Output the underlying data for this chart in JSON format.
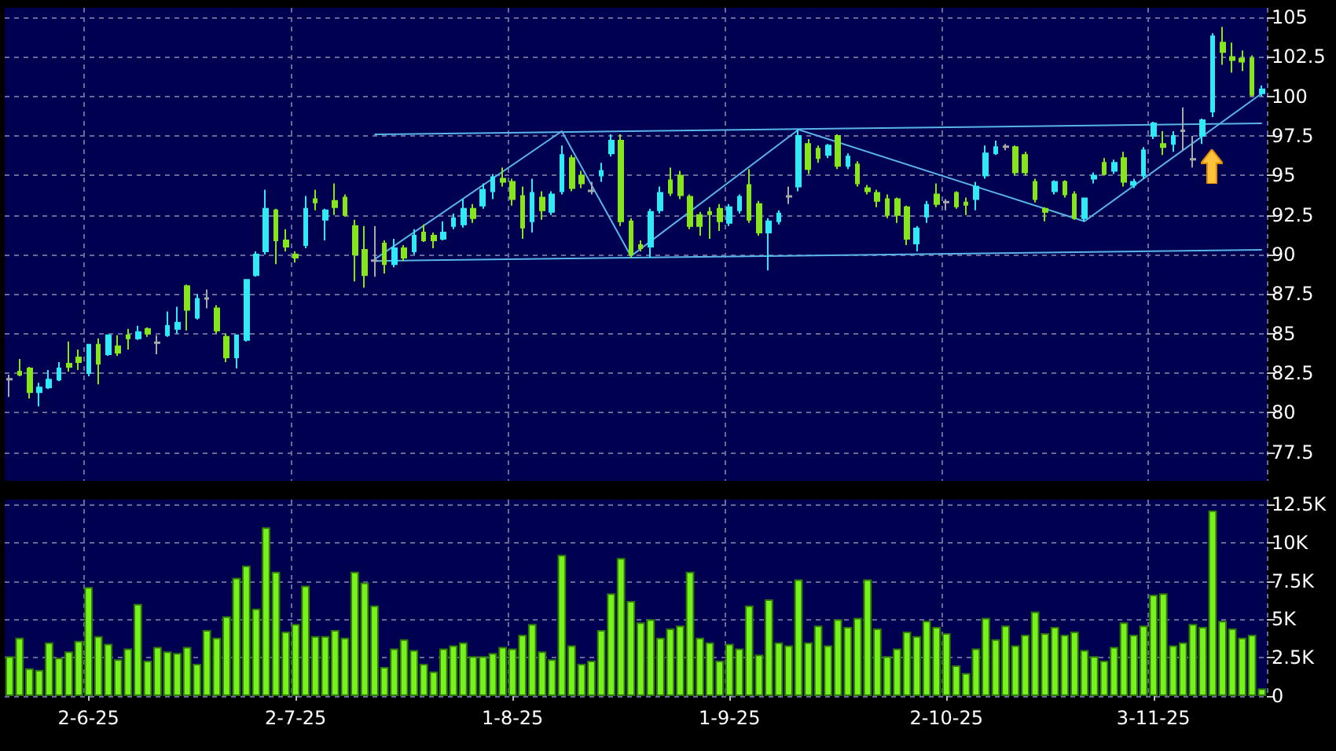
{
  "chart_data": [
    {
      "type": "candlestick",
      "categories": [
        null,
        null,
        null,
        null,
        null,
        null,
        null,
        null,
        null,
        null,
        null,
        null,
        null,
        null,
        null,
        null,
        null,
        null,
        null,
        null,
        null,
        null,
        null,
        null,
        null,
        null,
        null,
        null,
        null,
        null,
        null,
        null,
        null,
        null,
        null,
        null,
        null,
        null,
        null,
        null,
        null,
        null,
        null,
        null,
        null,
        null,
        null,
        null,
        null,
        null,
        null,
        null,
        null,
        null,
        null,
        null,
        null,
        null,
        null,
        null,
        null,
        null,
        null,
        null,
        null,
        null,
        null,
        null,
        null,
        null,
        null,
        null,
        null,
        null,
        null,
        null,
        null,
        null,
        null,
        null,
        null,
        null,
        null,
        null,
        null,
        null,
        null,
        null,
        null,
        null,
        null,
        null,
        null,
        null,
        null,
        null,
        null,
        null,
        null,
        null,
        null,
        null,
        null,
        null,
        null,
        null,
        null,
        null,
        null,
        null,
        null,
        null,
        null,
        null,
        null,
        null,
        null,
        null,
        null,
        null,
        null,
        null,
        null,
        null,
        null,
        null,
        null,
        null
      ],
      "ylim": [
        75.7,
        105.6
      ],
      "yticks": [
        77.5,
        80,
        82.5,
        85,
        87.5,
        90,
        92.5,
        95,
        97.5,
        100,
        102.5,
        105
      ],
      "grid": true,
      "tick_labels": "y",
      "series": [
        {
          "type": "candlestick",
          "ohlc": [
            [
              82.1,
              82.4,
              81.0,
              82.15
            ],
            [
              82.6,
              83.4,
              82.3,
              82.4
            ],
            [
              82.8,
              82.9,
              80.9,
              81.3
            ],
            [
              81.3,
              81.9,
              80.4,
              81.6
            ],
            [
              81.6,
              82.7,
              81.5,
              82.1
            ],
            [
              82.1,
              83.2,
              82.0,
              82.8
            ],
            [
              83.1,
              84.5,
              82.6,
              82.9
            ],
            [
              83.5,
              84.0,
              82.7,
              83.2
            ],
            [
              82.5,
              84.3,
              82.3,
              84.3
            ],
            [
              84.3,
              84.7,
              81.8,
              83.1
            ],
            [
              83.7,
              84.9,
              83.6,
              84.9
            ],
            [
              84.2,
              84.9,
              83.6,
              83.8
            ],
            [
              84.9,
              85.3,
              84.0,
              84.7
            ],
            [
              84.7,
              85.5,
              84.6,
              85.1
            ],
            [
              85.3,
              85.4,
              84.8,
              85.0
            ],
            [
              84.4,
              84.9,
              83.7,
              84.45
            ],
            [
              84.9,
              86.4,
              84.8,
              85.5
            ],
            [
              85.3,
              86.7,
              85.0,
              85.7
            ],
            [
              88.0,
              88.1,
              85.2,
              86.5
            ],
            [
              86.0,
              87.5,
              85.9,
              87.2
            ],
            [
              87.2,
              87.8,
              86.6,
              87.25
            ],
            [
              86.6,
              86.8,
              85.0,
              85.2
            ],
            [
              84.8,
              85.0,
              83.2,
              83.5
            ],
            [
              83.5,
              84.9,
              82.8,
              84.9
            ],
            [
              84.6,
              88.4,
              84.5,
              88.4
            ],
            [
              88.7,
              90.2,
              88.6,
              90.0
            ],
            [
              90.2,
              94.1,
              90.0,
              92.9
            ],
            [
              92.8,
              92.9,
              89.4,
              90.9
            ],
            [
              90.9,
              91.6,
              90.2,
              90.5
            ],
            [
              90.0,
              90.2,
              89.5,
              89.8
            ],
            [
              90.6,
              93.7,
              90.4,
              92.9
            ],
            [
              93.5,
              94.1,
              92.8,
              93.3
            ],
            [
              92.2,
              92.9,
              90.9,
              92.8
            ],
            [
              93.4,
              94.5,
              92.5,
              93.0
            ],
            [
              93.6,
              93.8,
              92.4,
              92.5
            ],
            [
              91.8,
              92.2,
              88.3,
              90.0
            ],
            [
              90.3,
              91.8,
              87.9,
              88.7
            ],
            [
              89.6,
              91.8,
              88.6,
              89.65
            ],
            [
              90.7,
              90.9,
              88.8,
              89.4
            ],
            [
              89.4,
              91.0,
              89.2,
              90.4
            ],
            [
              90.4,
              90.6,
              89.6,
              89.8
            ],
            [
              90.2,
              91.6,
              90.0,
              91.2
            ],
            [
              91.4,
              91.9,
              90.8,
              90.9
            ],
            [
              91.2,
              91.4,
              90.4,
              90.9
            ],
            [
              91.0,
              92.1,
              90.9,
              91.4
            ],
            [
              91.8,
              92.6,
              91.6,
              92.3
            ],
            [
              91.9,
              93.5,
              91.7,
              92.9
            ],
            [
              92.9,
              93.2,
              92.0,
              92.3
            ],
            [
              93.1,
              94.5,
              92.9,
              94.1
            ],
            [
              94.0,
              95.1,
              93.5,
              94.9
            ],
            [
              94.8,
              95.5,
              94.3,
              94.6
            ],
            [
              94.6,
              94.8,
              93.1,
              93.5
            ],
            [
              93.7,
              94.3,
              91.0,
              91.7
            ],
            [
              92.1,
              94.8,
              91.4,
              93.9
            ],
            [
              93.6,
              94.0,
              92.2,
              92.8
            ],
            [
              92.7,
              94.0,
              92.5,
              93.8
            ],
            [
              94.0,
              96.9,
              93.8,
              96.3
            ],
            [
              96.1,
              96.3,
              94.0,
              94.2
            ],
            [
              95.0,
              95.3,
              94.2,
              94.5
            ],
            [
              94.0,
              94.6,
              93.8,
              94.05
            ],
            [
              95.0,
              95.8,
              94.6,
              95.3
            ],
            [
              96.4,
              97.6,
              96.2,
              97.2
            ],
            [
              97.2,
              97.6,
              91.8,
              92.1
            ],
            [
              92.1,
              92.3,
              89.8,
              90.0
            ],
            [
              90.6,
              90.9,
              90.2,
              90.4
            ],
            [
              90.5,
              92.9,
              89.8,
              92.7
            ],
            [
              92.8,
              94.3,
              92.6,
              93.9
            ],
            [
              94.7,
              95.5,
              93.7,
              93.9
            ],
            [
              95.0,
              95.3,
              93.5,
              93.75
            ],
            [
              93.65,
              93.8,
              91.6,
              91.8
            ],
            [
              92.5,
              92.7,
              91.2,
              91.8
            ],
            [
              92.7,
              93.0,
              91.0,
              92.55
            ],
            [
              92.9,
              93.2,
              91.5,
              92.1
            ],
            [
              92.0,
              93.2,
              91.8,
              93.0
            ],
            [
              92.8,
              93.8,
              92.6,
              93.65
            ],
            [
              94.4,
              95.4,
              92.0,
              92.2
            ],
            [
              93.2,
              93.4,
              91.2,
              91.4
            ],
            [
              91.4,
              92.3,
              89.0,
              92.1
            ],
            [
              92.1,
              92.8,
              91.9,
              92.6
            ],
            [
              93.65,
              94.3,
              93.2,
              93.7
            ],
            [
              94.3,
              97.9,
              94.0,
              97.5
            ],
            [
              97.0,
              97.3,
              95.1,
              95.4
            ],
            [
              96.7,
              96.9,
              95.8,
              96.1
            ],
            [
              96.3,
              97.0,
              96.1,
              96.9
            ],
            [
              97.5,
              97.6,
              95.4,
              95.6
            ],
            [
              95.6,
              96.4,
              95.4,
              96.2
            ],
            [
              95.7,
              95.9,
              94.3,
              94.5
            ],
            [
              94.2,
              94.4,
              93.8,
              94.0
            ],
            [
              93.9,
              94.1,
              93.0,
              93.4
            ],
            [
              93.5,
              93.8,
              92.3,
              92.5
            ],
            [
              93.5,
              93.6,
              92.0,
              92.5
            ],
            [
              93.0,
              93.1,
              90.6,
              91.0
            ],
            [
              90.7,
              91.8,
              90.2,
              91.65
            ],
            [
              92.4,
              93.4,
              92.0,
              93.15
            ],
            [
              93.8,
              94.5,
              93.0,
              93.2
            ],
            [
              93.3,
              93.5,
              92.8,
              93.35
            ],
            [
              93.9,
              94.0,
              92.9,
              93.05
            ],
            [
              93.3,
              93.6,
              92.5,
              93.15
            ],
            [
              93.5,
              94.6,
              92.8,
              94.3
            ],
            [
              95.0,
              96.9,
              94.8,
              96.4
            ],
            [
              96.4,
              97.2,
              96.3,
              96.8
            ],
            [
              96.8,
              97.0,
              96.6,
              96.85
            ],
            [
              96.8,
              96.9,
              95.0,
              95.2
            ],
            [
              96.3,
              96.5,
              95.0,
              95.2
            ],
            [
              94.6,
              94.8,
              93.3,
              93.5
            ],
            [
              92.9,
              93.0,
              92.1,
              92.7
            ],
            [
              94.0,
              94.7,
              93.8,
              94.6
            ],
            [
              94.6,
              94.7,
              93.6,
              93.8
            ],
            [
              93.8,
              94.0,
              92.2,
              92.3
            ],
            [
              92.3,
              93.6,
              92.1,
              93.55
            ],
            [
              94.8,
              95.2,
              94.5,
              95.0
            ],
            [
              95.8,
              96.1,
              95.0,
              95.1
            ],
            [
              95.3,
              96.0,
              95.1,
              95.8
            ],
            [
              96.1,
              96.5,
              94.3,
              94.6
            ],
            [
              94.4,
              94.8,
              94.2,
              94.6
            ],
            [
              95.0,
              96.8,
              94.8,
              96.6
            ],
            [
              97.5,
              98.4,
              97.3,
              98.3
            ],
            [
              97.0,
              97.8,
              96.3,
              96.8
            ],
            [
              97.0,
              97.8,
              96.5,
              97.5
            ],
            [
              97.8,
              99.3,
              96.6,
              97.85
            ],
            [
              96.0,
              97.5,
              95.5,
              96.05
            ],
            [
              97.5,
              98.6,
              97.0,
              98.5
            ],
            [
              99.05,
              104.0,
              98.7,
              103.8
            ],
            [
              103.4,
              104.4,
              102.0,
              102.8
            ],
            [
              102.5,
              103.4,
              101.5,
              102.3
            ],
            [
              102.4,
              102.9,
              101.6,
              102.2
            ],
            [
              102.4,
              102.6,
              100.0,
              100.1
            ],
            [
              100.2,
              100.7,
              100.0,
              100.45
            ]
          ],
          "colors": [
            "#a8a8a8",
            "#86e51e",
            "#86e51e",
            "#33e8f5",
            "#33e8f5",
            "#33e8f5",
            "#86e51e",
            "#86e51e",
            "#33e8f5",
            "#86e51e",
            "#33e8f5",
            "#86e51e",
            "#86e51e",
            "#33e8f5",
            "#86e51e",
            "#a8a8a8",
            "#33e8f5",
            "#33e8f5",
            "#86e51e",
            "#33e8f5",
            "#a8a8a8",
            "#86e51e",
            "#86e51e",
            "#33e8f5",
            "#33e8f5",
            "#33e8f5",
            "#33e8f5",
            "#86e51e",
            "#86e51e",
            "#86e51e",
            "#33e8f5",
            "#86e51e",
            "#33e8f5",
            "#86e51e",
            "#86e51e",
            "#86e51e",
            "#86e51e",
            "#a8a8a8",
            "#86e51e",
            "#33e8f5",
            "#86e51e",
            "#33e8f5",
            "#86e51e",
            "#86e51e",
            "#33e8f5",
            "#33e8f5",
            "#33e8f5",
            "#86e51e",
            "#33e8f5",
            "#33e8f5",
            "#86e51e",
            "#86e51e",
            "#86e51e",
            "#33e8f5",
            "#86e51e",
            "#33e8f5",
            "#33e8f5",
            "#86e51e",
            "#86e51e",
            "#a8a8a8",
            "#33e8f5",
            "#33e8f5",
            "#86e51e",
            "#86e51e",
            "#86e51e",
            "#33e8f5",
            "#33e8f5",
            "#86e51e",
            "#86e51e",
            "#86e51e",
            "#86e51e",
            "#86e51e",
            "#86e51e",
            "#33e8f5",
            "#33e8f5",
            "#86e51e",
            "#86e51e",
            "#33e8f5",
            "#33e8f5",
            "#a8a8a8",
            "#33e8f5",
            "#86e51e",
            "#86e51e",
            "#33e8f5",
            "#86e51e",
            "#33e8f5",
            "#86e51e",
            "#86e51e",
            "#86e51e",
            "#86e51e",
            "#86e51e",
            "#86e51e",
            "#33e8f5",
            "#33e8f5",
            "#86e51e",
            "#a8a8a8",
            "#86e51e",
            "#86e51e",
            "#33e8f5",
            "#33e8f5",
            "#33e8f5",
            "#a8a8a8",
            "#86e51e",
            "#86e51e",
            "#86e51e",
            "#86e51e",
            "#33e8f5",
            "#86e51e",
            "#86e51e",
            "#33e8f5",
            "#33e8f5",
            "#86e51e",
            "#33e8f5",
            "#86e51e",
            "#33e8f5",
            "#33e8f5",
            "#33e8f5",
            "#86e51e",
            "#33e8f5",
            "#a8a8a8",
            "#a8a8a8",
            "#33e8f5",
            "#33e8f5",
            "#86e51e",
            "#86e51e",
            "#86e51e",
            "#86e51e",
            "#33e8f5"
          ]
        },
        {
          "type": "line",
          "color": "#5ab4e8",
          "values": [
            null,
            null,
            null,
            null,
            null,
            null,
            null,
            null,
            null,
            null,
            null,
            null,
            null,
            null,
            null,
            null,
            null,
            null,
            null,
            null,
            null,
            null,
            null,
            null,
            null,
            null,
            null,
            null,
            null,
            null,
            null,
            null,
            null,
            null,
            null,
            null,
            null,
            97.6,
            null,
            null,
            null,
            null,
            null,
            null,
            null,
            null,
            null,
            null,
            null,
            null,
            null,
            null,
            null,
            null,
            null,
            null,
            null,
            null,
            null,
            null,
            null,
            null,
            null,
            null,
            null,
            null,
            null,
            null,
            null,
            null,
            null,
            null,
            null,
            null,
            null,
            null,
            null,
            null,
            null,
            null,
            null,
            null,
            null,
            null,
            null,
            null,
            null,
            null,
            null,
            null,
            null,
            null,
            null,
            null,
            null,
            null,
            null,
            null,
            null,
            null,
            null,
            null,
            null,
            null,
            null,
            null,
            null,
            null,
            null,
            null,
            null,
            null,
            null,
            null,
            null,
            null,
            null,
            null,
            null,
            null,
            null,
            null,
            null,
            null,
            null,
            null,
            null,
            98.3
          ]
        },
        {
          "type": "line",
          "color": "#5ab4e8",
          "values": [
            null,
            null,
            null,
            null,
            null,
            null,
            null,
            null,
            null,
            null,
            null,
            null,
            null,
            null,
            null,
            null,
            null,
            null,
            null,
            null,
            null,
            null,
            null,
            null,
            null,
            null,
            null,
            null,
            null,
            null,
            null,
            null,
            null,
            null,
            null,
            null,
            null,
            89.6,
            null,
            null,
            null,
            null,
            null,
            null,
            null,
            null,
            null,
            null,
            null,
            null,
            null,
            null,
            null,
            null,
            null,
            null,
            null,
            null,
            null,
            null,
            null,
            null,
            null,
            null,
            null,
            null,
            null,
            null,
            null,
            null,
            null,
            null,
            null,
            null,
            null,
            null,
            null,
            null,
            null,
            null,
            null,
            null,
            null,
            null,
            null,
            null,
            null,
            null,
            null,
            null,
            null,
            null,
            null,
            null,
            null,
            null,
            null,
            null,
            null,
            null,
            null,
            null,
            null,
            null,
            null,
            null,
            null,
            null,
            null,
            null,
            null,
            null,
            null,
            null,
            null,
            null,
            null,
            null,
            null,
            null,
            null,
            null,
            null,
            null,
            null,
            null,
            null,
            90.3
          ]
        },
        {
          "type": "line",
          "color": "#5ab4e8",
          "values": [
            null,
            null,
            null,
            null,
            null,
            null,
            null,
            null,
            null,
            null,
            null,
            null,
            null,
            null,
            null,
            null,
            null,
            null,
            null,
            null,
            null,
            null,
            null,
            null,
            null,
            null,
            null,
            null,
            null,
            null,
            null,
            null,
            null,
            null,
            null,
            null,
            null,
            89.7,
            null,
            null,
            null,
            null,
            null,
            null,
            null,
            null,
            null,
            null,
            null,
            null,
            null,
            null,
            null,
            null,
            null,
            null,
            97.8,
            null,
            null,
            null,
            null,
            null,
            null,
            89.9,
            null,
            null,
            null,
            null,
            null,
            null,
            null,
            null,
            null,
            null,
            null,
            null,
            null,
            null,
            null,
            null,
            97.9,
            null,
            null,
            null,
            null,
            null,
            null,
            null,
            null,
            null,
            null,
            null,
            null,
            null,
            null,
            null,
            null,
            null,
            null,
            null,
            null,
            null,
            null,
            null,
            null,
            null,
            null,
            null,
            null,
            92.1,
            null,
            null,
            null,
            null,
            null,
            null,
            null,
            null,
            null,
            null,
            null,
            null,
            null,
            null,
            null,
            null,
            null,
            100.2
          ]
        }
      ]
    },
    {
      "type": "bar",
      "categories": [
        null,
        null,
        null,
        null,
        null,
        null,
        null,
        null,
        "2-6-25",
        null,
        null,
        null,
        null,
        null,
        null,
        null,
        null,
        null,
        null,
        null,
        null,
        null,
        null,
        null,
        null,
        null,
        null,
        null,
        null,
        "2-7-25",
        null,
        null,
        null,
        null,
        null,
        null,
        null,
        null,
        null,
        null,
        null,
        null,
        null,
        null,
        null,
        null,
        null,
        null,
        null,
        null,
        null,
        "1-8-25",
        null,
        null,
        null,
        null,
        null,
        null,
        null,
        null,
        null,
        null,
        null,
        null,
        null,
        null,
        null,
        null,
        null,
        null,
        null,
        null,
        null,
        "1-9-25",
        null,
        null,
        null,
        null,
        null,
        null,
        null,
        null,
        null,
        null,
        null,
        null,
        null,
        null,
        null,
        null,
        null,
        null,
        null,
        null,
        null,
        "2-10-25",
        null,
        null,
        null,
        null,
        null,
        null,
        null,
        null,
        null,
        null,
        null,
        null,
        null,
        null,
        null,
        null,
        null,
        null,
        null,
        null,
        "3-11-25",
        null,
        null,
        null,
        null,
        null,
        null,
        null,
        null,
        null,
        null,
        null
      ],
      "values": [
        2.6,
        3.8,
        1.8,
        1.7,
        3.5,
        2.5,
        2.9,
        3.6,
        7.1,
        3.9,
        3.4,
        2.4,
        3.1,
        6.0,
        2.3,
        3.2,
        2.9,
        2.8,
        3.2,
        2.1,
        4.3,
        3.8,
        5.2,
        7.7,
        8.5,
        5.7,
        11.0,
        8.1,
        4.2,
        4.7,
        7.2,
        3.9,
        3.9,
        4.3,
        3.8,
        8.1,
        7.4,
        5.9,
        1.9,
        3.1,
        3.7,
        3.0,
        2.1,
        1.6,
        3.1,
        3.3,
        3.5,
        2.6,
        2.6,
        2.8,
        3.2,
        3.1,
        4.0,
        4.7,
        2.9,
        2.4,
        9.2,
        3.3,
        2.1,
        2.3,
        4.3,
        6.7,
        9.0,
        6.2,
        4.8,
        5.0,
        3.8,
        4.4,
        4.6,
        8.1,
        3.8,
        3.5,
        2.3,
        3.4,
        3.1,
        5.9,
        2.7,
        6.3,
        3.5,
        3.3,
        7.6,
        3.5,
        4.6,
        3.3,
        5.0,
        4.5,
        5.1,
        7.6,
        4.4,
        2.6,
        3.1,
        4.2,
        3.9,
        4.9,
        4.5,
        4.1,
        2.0,
        1.5,
        3.1,
        5.1,
        3.7,
        4.6,
        3.3,
        4.0,
        5.5,
        4.1,
        4.5,
        4.0,
        4.2,
        3.0,
        2.6,
        2.3,
        3.2,
        4.8,
        4.0,
        4.6,
        6.6,
        6.7,
        3.3,
        3.5,
        4.7,
        4.5,
        12.1,
        4.9,
        4.4,
        3.8,
        4.0,
        0.5
      ],
      "color": "#77f21a",
      "ylim": [
        0,
        12.8
      ],
      "yticks": [
        0,
        {
          "value": 2.5,
          "label": "2.5K"
        },
        {
          "value": 5,
          "label": "5K"
        },
        {
          "value": 7.5,
          "label": "7.5K"
        },
        {
          "value": 10,
          "label": "10K"
        },
        {
          "value": 12.5,
          "label": "12.5K"
        }
      ],
      "grid": true
    }
  ]
}
